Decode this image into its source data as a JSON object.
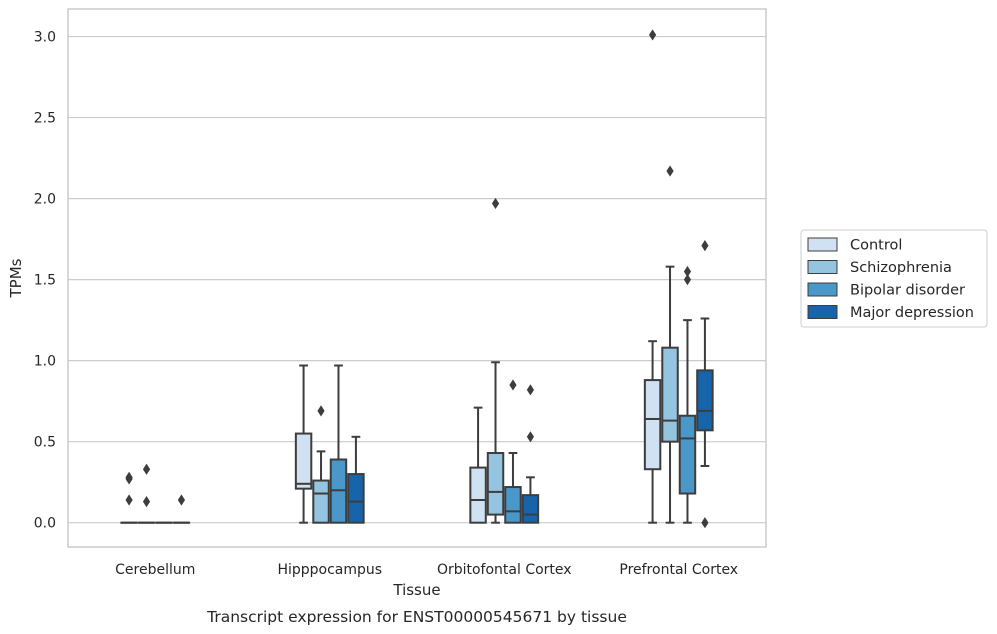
{
  "chart_data": {
    "type": "boxplot",
    "xlabel": "Tissue",
    "ylabel": "TPMs",
    "caption": "Transcript expression for ENST00000545671 by tissue",
    "ylim": [
      -0.15,
      3.17
    ],
    "yticks": [
      "0.0",
      "0.5",
      "1.0",
      "1.5",
      "2.0",
      "2.5",
      "3.0"
    ],
    "grid": "horizontal",
    "legend_position": "right",
    "categories": [
      "Cerebellum",
      "Hipppocampus",
      "Orbitofontal Cortex",
      "Prefrontal Cortex"
    ],
    "series": [
      {
        "name": "Control",
        "color": "#d0e1f2",
        "boxes": [
          {
            "whislo": 0,
            "q1": 0,
            "med": 0,
            "q3": 0,
            "whishi": 0,
            "fliers": [
              0.28,
              0.27,
              0.14
            ]
          },
          {
            "whislo": 0,
            "q1": 0.21,
            "med": 0.24,
            "q3": 0.55,
            "whishi": 0.97,
            "fliers": []
          },
          {
            "whislo": 0,
            "q1": 0,
            "med": 0.14,
            "q3": 0.34,
            "whishi": 0.71,
            "fliers": []
          },
          {
            "whislo": 0,
            "q1": 0.33,
            "med": 0.64,
            "q3": 0.88,
            "whishi": 1.12,
            "fliers": [
              3.01
            ]
          }
        ]
      },
      {
        "name": "Schizophrenia",
        "color": "#94c4df",
        "boxes": [
          {
            "whislo": 0,
            "q1": 0,
            "med": 0,
            "q3": 0,
            "whishi": 0,
            "fliers": [
              0.33,
              0.13
            ]
          },
          {
            "whislo": 0,
            "q1": 0,
            "med": 0.18,
            "q3": 0.26,
            "whishi": 0.44,
            "fliers": [
              0.69
            ]
          },
          {
            "whislo": 0,
            "q1": 0.05,
            "med": 0.19,
            "q3": 0.43,
            "whishi": 0.99,
            "fliers": [
              1.97
            ]
          },
          {
            "whislo": 0,
            "q1": 0.5,
            "med": 0.63,
            "q3": 1.08,
            "whishi": 1.58,
            "fliers": [
              2.17
            ]
          }
        ]
      },
      {
        "name": "Bipolar disorder",
        "color": "#4a98c9",
        "boxes": [
          {
            "whislo": 0,
            "q1": 0,
            "med": 0,
            "q3": 0,
            "whishi": 0,
            "fliers": []
          },
          {
            "whislo": 0,
            "q1": 0,
            "med": 0.2,
            "q3": 0.39,
            "whishi": 0.97,
            "fliers": []
          },
          {
            "whislo": 0,
            "q1": 0,
            "med": 0.07,
            "q3": 0.22,
            "whishi": 0.43,
            "fliers": [
              0.85
            ]
          },
          {
            "whislo": 0,
            "q1": 0.18,
            "med": 0.52,
            "q3": 0.66,
            "whishi": 1.25,
            "fliers": [
              1.55,
              1.5
            ]
          }
        ]
      },
      {
        "name": "Major depression",
        "color": "#1764ab",
        "boxes": [
          {
            "whislo": 0,
            "q1": 0,
            "med": 0,
            "q3": 0,
            "whishi": 0,
            "fliers": [
              0.14
            ]
          },
          {
            "whislo": 0,
            "q1": 0,
            "med": 0.13,
            "q3": 0.3,
            "whishi": 0.53,
            "fliers": []
          },
          {
            "whislo": 0,
            "q1": 0,
            "med": 0.05,
            "q3": 0.17,
            "whishi": 0.28,
            "fliers": [
              0.82,
              0.53
            ]
          },
          {
            "whislo": 0.35,
            "q1": 0.57,
            "med": 0.69,
            "q3": 0.94,
            "whishi": 1.26,
            "fliers": [
              1.71,
              0
            ]
          }
        ]
      }
    ],
    "colors": {
      "grid": "#cccccc",
      "frame": "#cccccc",
      "line": "#3d3d3d",
      "text": "#262626"
    }
  }
}
